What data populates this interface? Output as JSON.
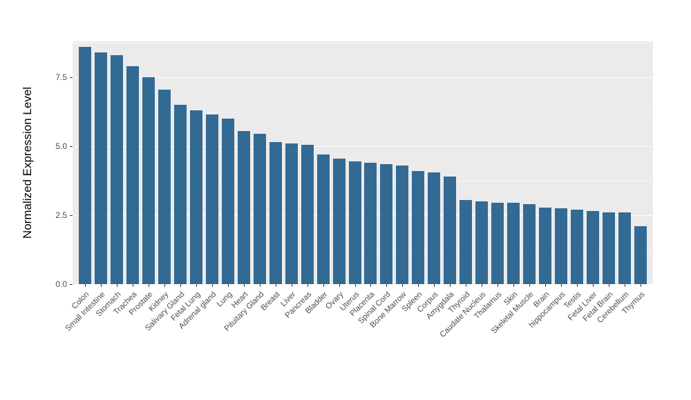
{
  "chart_data": {
    "type": "bar",
    "title": "",
    "xlabel": "",
    "ylabel": "Normalized Expression Level",
    "categories": [
      "Colon",
      "Small Intestine",
      "Stomach",
      "Trachea",
      "Prostate",
      "Kidney",
      "Salivary Gland",
      "Fetal Lung",
      "Adrenal gland",
      "Lung",
      "Heart",
      "Pituitary Gland",
      "Breast",
      "Liver",
      "Pancreas",
      "Bladder",
      "Ovary",
      "Uterus",
      "Placenta",
      "Spinal Cord",
      "Bone Marrow",
      "Spleen",
      "Corpus",
      "Amygdala",
      "Thyroid",
      "Caudate Nucleus",
      "Thalamus",
      "Skin",
      "Skeletal Muscle",
      "Brain",
      "hippocampus",
      "Testis",
      "Fetal Liver",
      "Fetal Brain",
      "Cerebellum",
      "Thymus"
    ],
    "values": [
      8.6,
      8.4,
      8.3,
      7.9,
      7.5,
      7.05,
      6.5,
      6.3,
      6.15,
      6.0,
      5.55,
      5.45,
      5.15,
      5.1,
      5.05,
      4.7,
      4.55,
      4.45,
      4.4,
      4.35,
      4.3,
      4.1,
      4.05,
      3.9,
      3.05,
      3.0,
      2.95,
      2.95,
      2.9,
      2.78,
      2.75,
      2.7,
      2.65,
      2.6,
      2.6,
      2.1
    ],
    "ylim": [
      0,
      8.8
    ],
    "yticks_major": [
      0,
      2.5,
      5,
      7.5
    ],
    "ytick_labels": [
      "0.0",
      "2.5",
      "5.0",
      "7.5"
    ],
    "yticks_minor": [
      1.25,
      3.75,
      6.25,
      8.75
    ],
    "bar_color": "#336A94",
    "panel_background": "#EBEBEB",
    "grid": "on",
    "legend": "none"
  }
}
